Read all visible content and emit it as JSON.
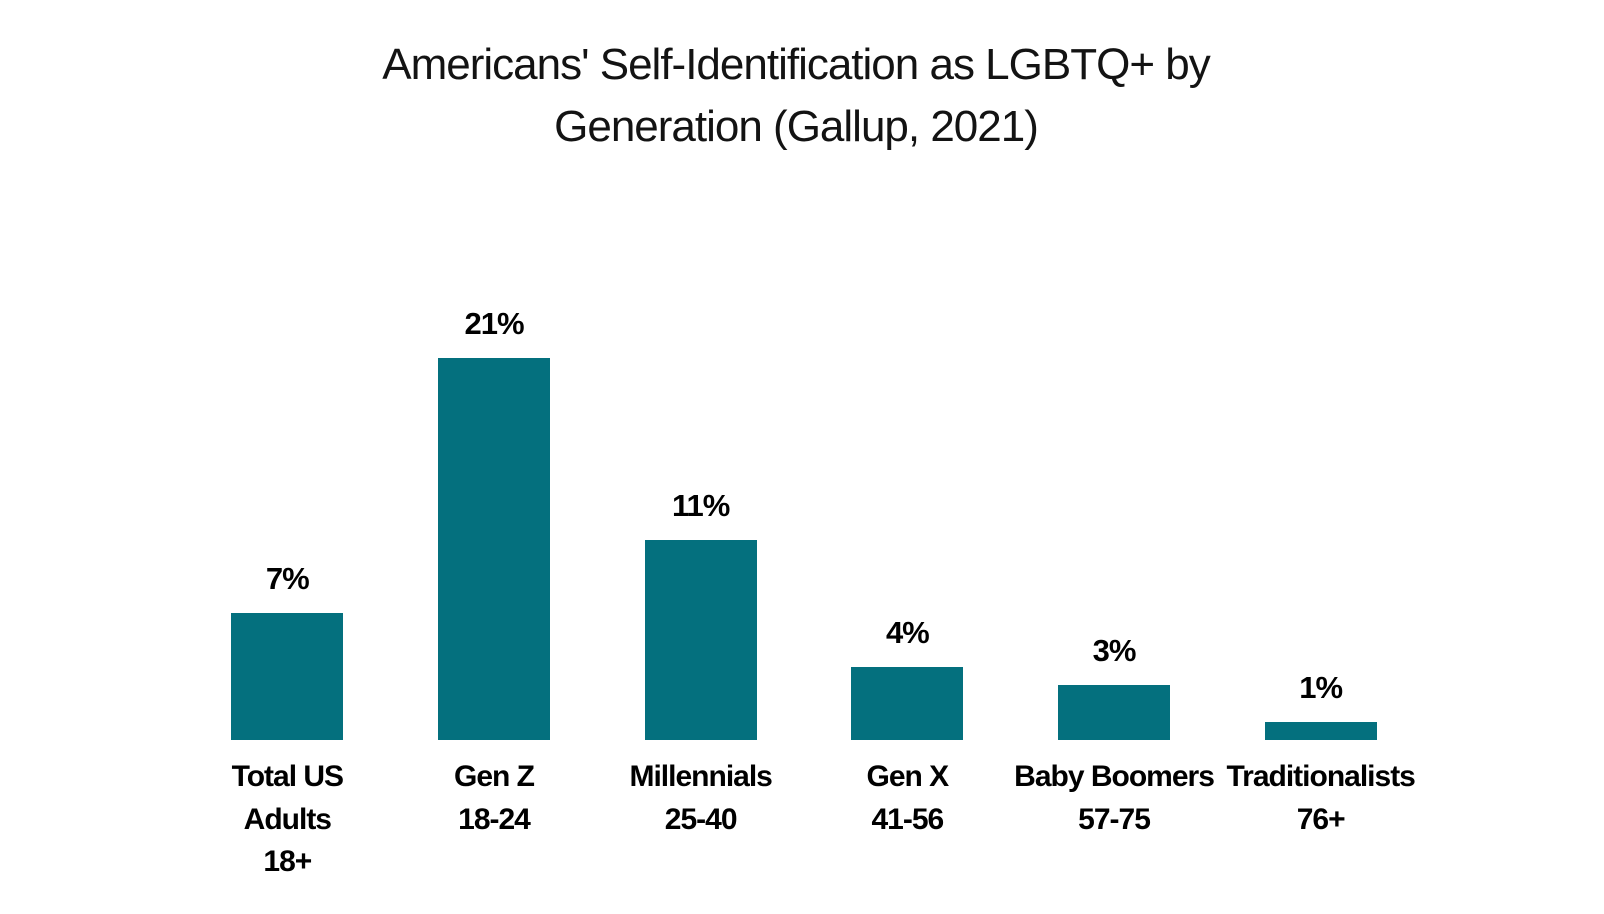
{
  "chart_data": {
    "type": "bar",
    "title": "Americans' Self-Identification as LGBTQ+ by Generation (Gallup, 2021)",
    "title_lines": [
      "Americans' Self-Identification as LGBTQ+ by",
      "Generation (Gallup, 2021)"
    ],
    "categories": [
      "Total US Adults 18+",
      "Gen Z 18-24",
      "Millennials 25-40",
      "Gen X 41-56",
      "Baby Boomers 57-75",
      "Traditionalists 76+"
    ],
    "values": [
      7,
      21,
      11,
      4,
      3,
      1
    ],
    "unit": "%",
    "ylim": [
      0,
      21
    ],
    "grid": false,
    "legend": "none",
    "bar_color": "#04707E",
    "text_color": "#000000",
    "title_color": "#131313",
    "bars": [
      {
        "value": 7,
        "data_label": "7%",
        "label_lines": [
          "Total US",
          "Adults",
          "18+"
        ]
      },
      {
        "value": 21,
        "data_label": "21%",
        "label_lines": [
          "Gen Z",
          "18-24"
        ]
      },
      {
        "value": 11,
        "data_label": "11%",
        "label_lines": [
          "Millennials",
          "25-40"
        ]
      },
      {
        "value": 4,
        "data_label": "4%",
        "label_lines": [
          "Gen X",
          "41-56"
        ]
      },
      {
        "value": 3,
        "data_label": "3%",
        "label_lines": [
          "Baby Boomers",
          "57-75"
        ]
      },
      {
        "value": 1,
        "data_label": "1%",
        "label_lines": [
          "Traditionalists",
          "76+"
        ]
      }
    ]
  }
}
